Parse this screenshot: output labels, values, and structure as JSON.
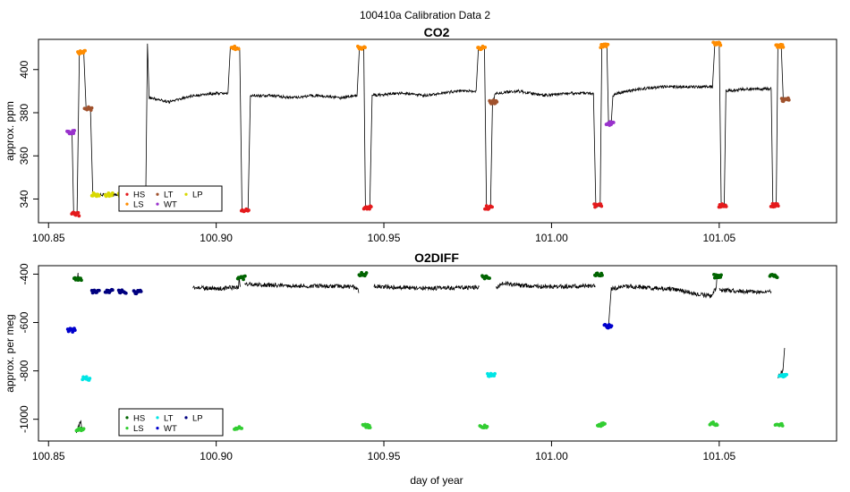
{
  "figure_title": "100410a   Calibration Data 2",
  "chart_data": [
    {
      "type": "line",
      "title": "CO2",
      "xlabel": "",
      "ylabel": "approx. ppm",
      "xlim": [
        100.847,
        101.085
      ],
      "ylim": [
        329,
        414
      ],
      "xticks": [
        100.85,
        100.9,
        100.95,
        101.0,
        101.05
      ],
      "xtick_labels": [
        "100.85",
        "100.90",
        "100.95",
        "101.00",
        "101.05"
      ],
      "yticks": [
        340,
        360,
        380,
        400
      ],
      "ytick_labels": [
        "340",
        "360",
        "380",
        "400"
      ],
      "grid": false,
      "legend_position": "bottom-left",
      "legend": [
        {
          "label": "HS",
          "color": "#e41a1c"
        },
        {
          "label": "LS",
          "color": "#ff8c00"
        },
        {
          "label": "LT",
          "color": "#a0522d"
        },
        {
          "label": "WT",
          "color": "#9932cc"
        },
        {
          "label": "LP",
          "color": "#d8d800"
        }
      ],
      "trace_color": "#000000",
      "trace": [
        [
          100.8555,
          371
        ],
        [
          100.857,
          371
        ],
        [
          100.8575,
          333
        ],
        [
          100.8585,
          333
        ],
        [
          100.8592,
          408
        ],
        [
          100.8605,
          408
        ],
        [
          100.8612,
          382
        ],
        [
          100.8625,
          382
        ],
        [
          100.8632,
          342
        ],
        [
          100.879,
          342
        ],
        [
          100.8795,
          412
        ],
        [
          100.88,
          387
        ],
        [
          100.886,
          385
        ],
        [
          100.893,
          388
        ],
        [
          100.9,
          389
        ],
        [
          100.9035,
          389
        ],
        [
          100.9042,
          410
        ],
        [
          100.907,
          410
        ],
        [
          100.9077,
          335
        ],
        [
          100.9095,
          335
        ],
        [
          100.9102,
          388
        ],
        [
          100.916,
          388
        ],
        [
          100.922,
          387
        ],
        [
          100.93,
          388
        ],
        [
          100.937,
          387
        ],
        [
          100.942,
          388
        ],
        [
          100.9427,
          410
        ],
        [
          100.944,
          410
        ],
        [
          100.9445,
          336
        ],
        [
          100.9458,
          336
        ],
        [
          100.9465,
          388
        ],
        [
          100.955,
          389
        ],
        [
          100.962,
          388
        ],
        [
          100.972,
          390
        ],
        [
          100.9775,
          390
        ],
        [
          100.9782,
          410
        ],
        [
          100.98,
          410
        ],
        [
          100.9806,
          336
        ],
        [
          100.9818,
          336
        ],
        [
          100.9824,
          385
        ],
        [
          100.9833,
          389
        ],
        [
          100.99,
          390
        ],
        [
          100.998,
          388
        ],
        [
          101.005,
          389
        ],
        [
          101.0125,
          389
        ],
        [
          101.0132,
          337
        ],
        [
          101.0145,
          337
        ],
        [
          101.015,
          411
        ],
        [
          101.0165,
          411
        ],
        [
          101.017,
          375
        ],
        [
          101.0178,
          375
        ],
        [
          101.0183,
          388
        ],
        [
          101.0195,
          389
        ],
        [
          101.026,
          391
        ],
        [
          101.034,
          392
        ],
        [
          101.044,
          392
        ],
        [
          101.048,
          392
        ],
        [
          101.0487,
          412
        ],
        [
          101.05,
          412
        ],
        [
          101.0506,
          337
        ],
        [
          101.0515,
          337
        ],
        [
          101.052,
          390
        ],
        [
          101.057,
          391
        ],
        [
          101.064,
          391
        ],
        [
          101.0655,
          391
        ],
        [
          101.066,
          337
        ],
        [
          101.067,
          337
        ],
        [
          101.0675,
          411
        ],
        [
          101.0685,
          411
        ],
        [
          101.0691,
          386
        ],
        [
          101.07,
          386
        ]
      ],
      "calibration_points": [
        {
          "label": "WT",
          "x": 100.8566,
          "y": 371
        },
        {
          "label": "HS",
          "x": 100.858,
          "y": 333
        },
        {
          "label": "LS",
          "x": 100.8598,
          "y": 408
        },
        {
          "label": "LT",
          "x": 100.8618,
          "y": 382
        },
        {
          "label": "LP",
          "x": 100.864,
          "y": 342
        },
        {
          "label": "LP",
          "x": 100.868,
          "y": 342
        },
        {
          "label": "LP",
          "x": 100.872,
          "y": 342
        },
        {
          "label": "LS",
          "x": 100.9056,
          "y": 410
        },
        {
          "label": "HS",
          "x": 100.9086,
          "y": 335
        },
        {
          "label": "LS",
          "x": 100.9433,
          "y": 410
        },
        {
          "label": "HS",
          "x": 100.9451,
          "y": 336
        },
        {
          "label": "LS",
          "x": 100.9791,
          "y": 410
        },
        {
          "label": "HS",
          "x": 100.9812,
          "y": 336
        },
        {
          "label": "LT",
          "x": 100.9826,
          "y": 385
        },
        {
          "label": "HS",
          "x": 101.0138,
          "y": 337
        },
        {
          "label": "LS",
          "x": 101.0157,
          "y": 411
        },
        {
          "label": "WT",
          "x": 101.0174,
          "y": 375
        },
        {
          "label": "LS",
          "x": 101.0493,
          "y": 412
        },
        {
          "label": "HS",
          "x": 101.051,
          "y": 337
        },
        {
          "label": "HS",
          "x": 101.0665,
          "y": 337
        },
        {
          "label": "LS",
          "x": 101.068,
          "y": 411
        },
        {
          "label": "LT",
          "x": 101.0697,
          "y": 386
        }
      ]
    },
    {
      "type": "line",
      "title": "O2DIFF",
      "xlabel": "day of year",
      "ylabel": "approx. per meg",
      "xlim": [
        100.847,
        101.085
      ],
      "ylim": [
        -1090,
        -365
      ],
      "xticks": [
        100.85,
        100.9,
        100.95,
        101.0,
        101.05
      ],
      "xtick_labels": [
        "100.85",
        "100.90",
        "100.95",
        "101.00",
        "101.05"
      ],
      "yticks": [
        -1000,
        -800,
        -600,
        -400
      ],
      "ytick_labels": [
        "-1000",
        "-800",
        "-600",
        "-400"
      ],
      "grid": false,
      "legend_position": "bottom-left",
      "legend": [
        {
          "label": "HS",
          "color": "#006400"
        },
        {
          "label": "LS",
          "color": "#32cd32"
        },
        {
          "label": "LT",
          "color": "#00e5e5"
        },
        {
          "label": "WT",
          "color": "#0000cd"
        },
        {
          "label": "LP",
          "color": "#000080"
        }
      ],
      "trace_color": "#000000",
      "segments": [
        [
          [
            100.8582,
            -1050
          ],
          [
            100.8588,
            -1040
          ],
          [
            100.8595,
            -1005
          ],
          [
            100.86,
            -1040
          ]
        ],
        [
          [
            100.8585,
            -420
          ],
          [
            100.8588,
            -400
          ],
          [
            100.8592,
            -415
          ]
        ],
        [
          [
            100.893,
            -455
          ],
          [
            100.9,
            -460
          ],
          [
            100.905,
            -455
          ],
          [
            100.9066,
            -455
          ],
          [
            100.9068,
            -420
          ],
          [
            100.9072,
            -448
          ]
        ],
        [
          [
            100.9085,
            -440
          ],
          [
            100.915,
            -445
          ],
          [
            100.925,
            -448
          ],
          [
            100.935,
            -450
          ],
          [
            100.941,
            -452
          ],
          [
            100.9425,
            -470
          ]
        ],
        [
          [
            100.947,
            -450
          ],
          [
            100.955,
            -455
          ],
          [
            100.965,
            -458
          ],
          [
            100.9785,
            -455
          ]
        ],
        [
          [
            100.9835,
            -455
          ],
          [
            100.9855,
            -438
          ],
          [
            100.992,
            -448
          ],
          [
            101.0,
            -452
          ],
          [
            101.013,
            -448
          ]
        ],
        [
          [
            101.017,
            -615
          ],
          [
            101.0178,
            -460
          ],
          [
            101.023,
            -450
          ],
          [
            101.03,
            -458
          ],
          [
            101.037,
            -463
          ],
          [
            101.043,
            -482
          ],
          [
            101.0475,
            -490
          ],
          [
            101.049,
            -460
          ],
          [
            101.0493,
            -420
          ]
        ],
        [
          [
            101.05,
            -465
          ],
          [
            101.056,
            -470
          ],
          [
            101.062,
            -475
          ],
          [
            101.0655,
            -470
          ]
        ],
        [
          [
            101.0675,
            -825
          ],
          [
            101.069,
            -800
          ],
          [
            101.0695,
            -705
          ]
        ]
      ],
      "calibration_points": [
        {
          "label": "WT",
          "x": 100.8568,
          "y": -632
        },
        {
          "label": "HS",
          "x": 100.8587,
          "y": -418
        },
        {
          "label": "LS",
          "x": 100.8594,
          "y": -1042
        },
        {
          "label": "LT",
          "x": 100.8612,
          "y": -832
        },
        {
          "label": "LP",
          "x": 100.864,
          "y": -472
        },
        {
          "label": "LP",
          "x": 100.868,
          "y": -470
        },
        {
          "label": "LP",
          "x": 100.872,
          "y": -472
        },
        {
          "label": "LP",
          "x": 100.8765,
          "y": -474
        },
        {
          "label": "LS",
          "x": 100.9065,
          "y": -1038
        },
        {
          "label": "HS",
          "x": 100.9075,
          "y": -415
        },
        {
          "label": "HS",
          "x": 100.9437,
          "y": -400
        },
        {
          "label": "LS",
          "x": 100.9448,
          "y": -1028
        },
        {
          "label": "LS",
          "x": 100.9797,
          "y": -1032
        },
        {
          "label": "HS",
          "x": 100.9804,
          "y": -412
        },
        {
          "label": "LT",
          "x": 100.982,
          "y": -818
        },
        {
          "label": "LS",
          "x": 101.0148,
          "y": -1022
        },
        {
          "label": "HS",
          "x": 101.014,
          "y": -402
        },
        {
          "label": "WT",
          "x": 101.0168,
          "y": -615
        },
        {
          "label": "LS",
          "x": 101.0483,
          "y": -1018
        },
        {
          "label": "HS",
          "x": 101.0495,
          "y": -408
        },
        {
          "label": "HS",
          "x": 101.0662,
          "y": -408
        },
        {
          "label": "LS",
          "x": 101.0678,
          "y": -1025
        },
        {
          "label": "LT",
          "x": 101.069,
          "y": -818
        }
      ]
    }
  ]
}
